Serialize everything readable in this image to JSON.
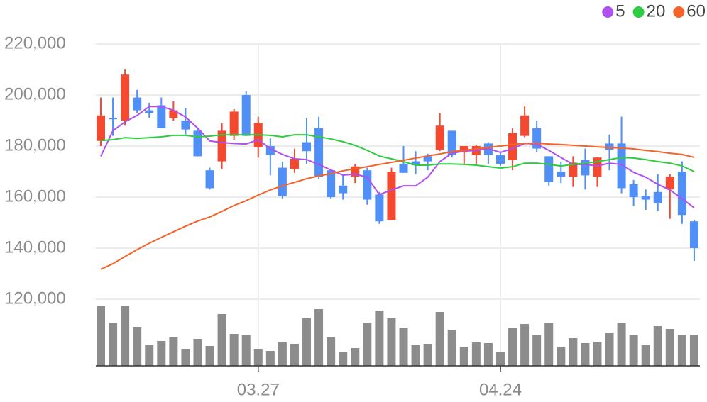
{
  "chart_data": {
    "type": "candlestick",
    "categories": [
      null,
      null,
      null,
      null,
      null,
      null,
      null,
      null,
      null,
      null,
      null,
      null,
      null,
      "03.27",
      null,
      null,
      null,
      null,
      null,
      null,
      null,
      null,
      null,
      null,
      null,
      null,
      null,
      null,
      null,
      null,
      null,
      null,
      null,
      "04.24",
      null,
      null,
      null,
      null,
      null,
      null,
      null,
      null,
      null,
      null,
      null,
      null,
      null,
      null,
      null,
      null
    ],
    "open": [
      182000,
      191000,
      190000,
      199000,
      194000,
      196000,
      191000,
      190000,
      186000,
      170500,
      174000,
      184000,
      200000,
      179500,
      180000,
      171500,
      171000,
      181500,
      187000,
      170500,
      164500,
      168000,
      170500,
      161000,
      151000,
      173000,
      174000,
      176000,
      178500,
      186000,
      177500,
      176500,
      181000,
      176500,
      174500,
      184000,
      187000,
      176000,
      170000,
      168000,
      174500,
      168000,
      181000,
      181000,
      165000,
      160500,
      162000,
      163000,
      170000,
      150500
    ],
    "high": [
      199000,
      199000,
      210000,
      202000,
      197000,
      199000,
      197500,
      195000,
      187000,
      171500,
      189000,
      194500,
      201500,
      191500,
      183000,
      173900,
      179000,
      191000,
      191500,
      171000,
      168500,
      173000,
      171500,
      162000,
      171500,
      180000,
      178000,
      177000,
      193000,
      186000,
      180000,
      180500,
      181500,
      177800,
      187000,
      195500,
      190000,
      176000,
      173900,
      176000,
      179000,
      175600,
      184500,
      191500,
      166700,
      163000,
      169000,
      169000,
      174000,
      151000
    ],
    "low": [
      180000,
      184000,
      188000,
      193000,
      191000,
      187000,
      190000,
      184500,
      176000,
      163000,
      171000,
      182500,
      183900,
      175500,
      168500,
      159500,
      169500,
      173000,
      167000,
      159500,
      159000,
      165500,
      157000,
      149500,
      151000,
      169500,
      169000,
      170500,
      178000,
      175500,
      173000,
      173000,
      173000,
      172200,
      170500,
      183500,
      177500,
      164500,
      165500,
      164000,
      163000,
      164000,
      170500,
      161500,
      156500,
      155000,
      154500,
      151500,
      149500,
      135000
    ],
    "close": [
      192000,
      190500,
      208000,
      194000,
      193000,
      187000,
      194000,
      186500,
      176000,
      163500,
      186000,
      193500,
      184000,
      189000,
      176500,
      160500,
      175000,
      178000,
      168000,
      160000,
      161500,
      172000,
      159000,
      150500,
      170000,
      169500,
      172500,
      174000,
      188000,
      176500,
      180000,
      180000,
      176500,
      173000,
      185000,
      192000,
      179000,
      166000,
      168000,
      173500,
      168500,
      175500,
      178500,
      163500,
      160000,
      159000,
      157500,
      168000,
      153000,
      140000
    ],
    "volume": [
      84,
      60,
      84,
      55,
      30,
      35,
      40,
      24,
      38,
      28,
      73,
      45,
      44,
      24,
      21,
      33,
      31,
      67,
      80,
      40,
      20,
      25,
      61,
      78,
      67,
      53,
      30,
      31,
      76,
      51,
      27,
      33,
      32,
      20,
      53,
      59,
      44,
      60,
      26,
      39,
      32,
      34,
      47,
      61,
      44,
      30,
      56,
      52,
      44,
      44
    ],
    "up_color": "#f4492f",
    "down_color": "#4f8ff7",
    "volume_color": "#8c8c8c",
    "series": [
      {
        "name": "5",
        "color": "#b04ef0",
        "values": [
          176000,
          186000,
          189500,
          192000,
          195500,
          195500,
          194000,
          191400,
          187000,
          182000,
          181400,
          181000,
          180800,
          182500,
          179000,
          176700,
          175000,
          174700,
          172800,
          170600,
          168600,
          169000,
          167800,
          161000,
          162800,
          164400,
          164400,
          167800,
          173900,
          177200,
          178000,
          178300,
          179000,
          177500,
          179000,
          181000,
          180800,
          178300,
          175500,
          172800,
          172800,
          172200,
          173300,
          172800,
          169700,
          167800,
          165000,
          162800,
          159400,
          155800
        ]
      },
      {
        "name": "20",
        "color": "#2ecc40",
        "values": [
          182200,
          182500,
          183300,
          183000,
          183300,
          183600,
          184200,
          184200,
          183600,
          183900,
          184400,
          184400,
          184400,
          184400,
          184200,
          183600,
          184400,
          184400,
          183600,
          182800,
          181700,
          180300,
          178300,
          176100,
          175000,
          173900,
          172500,
          172500,
          173000,
          173000,
          172800,
          172500,
          171900,
          171400,
          171900,
          173300,
          173300,
          172800,
          172200,
          172800,
          173300,
          173900,
          174700,
          175500,
          175300,
          174700,
          173900,
          173300,
          172200,
          170000
        ]
      },
      {
        "name": "60",
        "color": "#f5622a",
        "values": [
          131700,
          133900,
          136700,
          139400,
          141900,
          144200,
          146400,
          148600,
          150600,
          152200,
          154400,
          156700,
          158600,
          160800,
          162800,
          164400,
          165800,
          167200,
          168300,
          169200,
          170300,
          171100,
          171900,
          172800,
          173600,
          174400,
          175300,
          176100,
          176900,
          177800,
          178300,
          178900,
          179400,
          180000,
          180600,
          181100,
          181100,
          180800,
          180600,
          180300,
          180000,
          179700,
          179400,
          179200,
          178900,
          178300,
          177800,
          177200,
          176700,
          175600
        ]
      }
    ],
    "ylim": [
      120000,
      220000
    ],
    "yticks": [
      {
        "value": 220000,
        "label": "220,000"
      },
      {
        "value": 200000,
        "label": "200,000"
      },
      {
        "value": 180000,
        "label": "180,000"
      },
      {
        "value": 160000,
        "label": "160,000"
      },
      {
        "value": 140000,
        "label": "140,000"
      },
      {
        "value": 120000,
        "label": "120,000"
      }
    ],
    "grid": true,
    "legend": "top-right"
  }
}
